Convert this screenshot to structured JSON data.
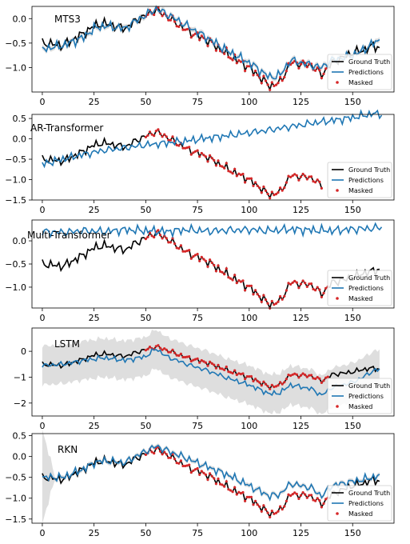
{
  "chart_data": [
    {
      "type": "line",
      "title": "MTS3",
      "xlim": [
        -5,
        170
      ],
      "ylim": [
        -1.5,
        0.25
      ],
      "xticks": [
        0,
        25,
        50,
        75,
        100,
        125,
        150
      ],
      "yticks": [
        -1.0,
        -0.5,
        0.0
      ],
      "ytick_labels": [
        "−1.0",
        "−0.5",
        "0.0"
      ],
      "pred_band": 0.05,
      "gt_knots": [
        [
          0,
          -0.5
        ],
        [
          10,
          -0.55
        ],
        [
          20,
          -0.3
        ],
        [
          25,
          -0.15
        ],
        [
          30,
          -0.1
        ],
        [
          40,
          -0.2
        ],
        [
          45,
          -0.05
        ],
        [
          55,
          0.18
        ],
        [
          60,
          0.05
        ],
        [
          70,
          -0.25
        ],
        [
          80,
          -0.45
        ],
        [
          90,
          -0.75
        ],
        [
          100,
          -1.0
        ],
        [
          110,
          -1.38
        ],
        [
          115,
          -1.3
        ],
        [
          120,
          -0.9
        ],
        [
          130,
          -0.95
        ],
        [
          135,
          -1.15
        ],
        [
          140,
          -0.9
        ],
        [
          150,
          -0.7
        ],
        [
          155,
          -0.65
        ],
        [
          160,
          -0.55
        ],
        [
          163,
          -0.6
        ]
      ],
      "pred_knots": [
        [
          0,
          -0.62
        ],
        [
          10,
          -0.55
        ],
        [
          20,
          -0.38
        ],
        [
          25,
          -0.2
        ],
        [
          30,
          -0.15
        ],
        [
          40,
          -0.2
        ],
        [
          45,
          -0.05
        ],
        [
          55,
          0.2
        ],
        [
          60,
          0.1
        ],
        [
          70,
          -0.15
        ],
        [
          80,
          -0.4
        ],
        [
          90,
          -0.68
        ],
        [
          100,
          -0.9
        ],
        [
          110,
          -1.2
        ],
        [
          115,
          -1.15
        ],
        [
          120,
          -0.85
        ],
        [
          130,
          -0.95
        ],
        [
          135,
          -1.0
        ],
        [
          140,
          -0.85
        ],
        [
          150,
          -0.75
        ],
        [
          155,
          -0.65
        ],
        [
          160,
          -0.5
        ],
        [
          163,
          -0.45
        ]
      ],
      "masked_range": [
        50,
        138
      ],
      "legend": [
        "Ground Truth",
        "Predictions",
        "Masked"
      ],
      "legend_position": "bottom-right"
    },
    {
      "type": "line",
      "title": "AR-Transformer",
      "xlim": [
        -5,
        170
      ],
      "ylim": [
        -1.5,
        0.6
      ],
      "xticks": [
        0,
        25,
        50,
        75,
        100,
        125,
        150
      ],
      "yticks": [
        -1.5,
        -1.0,
        -0.5,
        0.0,
        0.5
      ],
      "ytick_labels": [
        "−1.5",
        "−1.0",
        "−0.5",
        "0.0",
        "0.5"
      ],
      "pred_band": 0,
      "gt_knots": [
        [
          0,
          -0.5
        ],
        [
          10,
          -0.55
        ],
        [
          20,
          -0.3
        ],
        [
          25,
          -0.15
        ],
        [
          30,
          -0.1
        ],
        [
          40,
          -0.2
        ],
        [
          45,
          -0.05
        ],
        [
          55,
          0.18
        ],
        [
          60,
          0.05
        ],
        [
          70,
          -0.25
        ],
        [
          80,
          -0.45
        ],
        [
          90,
          -0.75
        ],
        [
          100,
          -1.0
        ],
        [
          110,
          -1.38
        ],
        [
          115,
          -1.3
        ],
        [
          120,
          -0.9
        ],
        [
          130,
          -0.95
        ],
        [
          135,
          -1.15
        ]
      ],
      "pred_knots": [
        [
          0,
          -0.62
        ],
        [
          10,
          -0.5
        ],
        [
          20,
          -0.38
        ],
        [
          30,
          -0.28
        ],
        [
          40,
          -0.22
        ],
        [
          50,
          -0.15
        ],
        [
          60,
          -0.1
        ],
        [
          70,
          -0.05
        ],
        [
          80,
          0.02
        ],
        [
          90,
          0.08
        ],
        [
          100,
          0.15
        ],
        [
          110,
          0.22
        ],
        [
          120,
          0.3
        ],
        [
          130,
          0.38
        ],
        [
          140,
          0.45
        ],
        [
          150,
          0.52
        ],
        [
          160,
          0.62
        ],
        [
          164,
          0.6
        ]
      ],
      "masked_range": [
        50,
        138
      ],
      "legend": [
        "Ground Truth",
        "Predictions",
        "Masked"
      ],
      "legend_position": "bottom-right"
    },
    {
      "type": "line",
      "title": "Multi-Transformer",
      "xlim": [
        -5,
        170
      ],
      "ylim": [
        -1.45,
        0.45
      ],
      "xticks": [
        0,
        25,
        50,
        75,
        100,
        125,
        150
      ],
      "yticks": [
        -1.0,
        -0.5,
        0.0
      ],
      "ytick_labels": [
        "−1.0",
        "−0.5",
        "0.0"
      ],
      "pred_band": 0,
      "gt_knots": [
        [
          0,
          -0.5
        ],
        [
          10,
          -0.55
        ],
        [
          20,
          -0.3
        ],
        [
          25,
          -0.15
        ],
        [
          30,
          -0.1
        ],
        [
          40,
          -0.2
        ],
        [
          45,
          -0.05
        ],
        [
          55,
          0.18
        ],
        [
          60,
          0.05
        ],
        [
          70,
          -0.25
        ],
        [
          80,
          -0.45
        ],
        [
          90,
          -0.75
        ],
        [
          100,
          -1.0
        ],
        [
          110,
          -1.38
        ],
        [
          115,
          -1.3
        ],
        [
          120,
          -0.9
        ],
        [
          130,
          -0.95
        ],
        [
          135,
          -1.15
        ],
        [
          140,
          -0.9
        ],
        [
          150,
          -0.8
        ],
        [
          155,
          -0.7
        ],
        [
          160,
          -0.65
        ],
        [
          163,
          -0.62
        ]
      ],
      "pred_knots": [
        [
          0,
          0.2
        ],
        [
          10,
          0.18
        ],
        [
          20,
          0.22
        ],
        [
          30,
          0.2
        ],
        [
          40,
          0.24
        ],
        [
          50,
          0.22
        ],
        [
          60,
          0.2
        ],
        [
          70,
          0.24
        ],
        [
          80,
          0.21
        ],
        [
          90,
          0.23
        ],
        [
          100,
          0.24
        ],
        [
          110,
          0.22
        ],
        [
          120,
          0.25
        ],
        [
          130,
          0.23
        ],
        [
          140,
          0.22
        ],
        [
          150,
          0.25
        ],
        [
          160,
          0.27
        ],
        [
          164,
          0.3
        ]
      ],
      "masked_range": [
        50,
        138
      ],
      "legend": [
        "Ground Truth",
        "Predictions",
        "Masked"
      ],
      "legend_position": "bottom-right"
    },
    {
      "type": "line",
      "title": "LSTM",
      "xlim": [
        -5,
        170
      ],
      "ylim": [
        -2.5,
        0.9
      ],
      "xticks": [
        0,
        25,
        50,
        75,
        100,
        125,
        150
      ],
      "yticks": [
        -2,
        -1,
        0
      ],
      "ytick_labels": [
        "−2",
        "−1",
        "0"
      ],
      "pred_band": 0.75,
      "gt_knots": [
        [
          0,
          -0.5
        ],
        [
          10,
          -0.55
        ],
        [
          20,
          -0.3
        ],
        [
          25,
          -0.15
        ],
        [
          30,
          -0.1
        ],
        [
          40,
          -0.2
        ],
        [
          45,
          -0.05
        ],
        [
          55,
          0.18
        ],
        [
          60,
          0.05
        ],
        [
          70,
          -0.25
        ],
        [
          80,
          -0.45
        ],
        [
          90,
          -0.75
        ],
        [
          100,
          -1.0
        ],
        [
          110,
          -1.38
        ],
        [
          115,
          -1.3
        ],
        [
          120,
          -0.9
        ],
        [
          130,
          -0.95
        ],
        [
          135,
          -1.15
        ],
        [
          140,
          -0.9
        ],
        [
          150,
          -0.8
        ],
        [
          155,
          -0.7
        ],
        [
          160,
          -0.65
        ],
        [
          163,
          -0.7
        ]
      ],
      "pred_knots": [
        [
          0,
          -0.55
        ],
        [
          10,
          -0.5
        ],
        [
          20,
          -0.35
        ],
        [
          30,
          -0.25
        ],
        [
          40,
          -0.35
        ],
        [
          50,
          -0.2
        ],
        [
          55,
          0.1
        ],
        [
          60,
          -0.2
        ],
        [
          70,
          -0.5
        ],
        [
          80,
          -0.75
        ],
        [
          90,
          -1.05
        ],
        [
          100,
          -1.3
        ],
        [
          110,
          -1.65
        ],
        [
          115,
          -1.6
        ],
        [
          120,
          -1.3
        ],
        [
          130,
          -1.45
        ],
        [
          135,
          -1.7
        ],
        [
          140,
          -1.4
        ],
        [
          150,
          -1.2
        ],
        [
          155,
          -1.0
        ],
        [
          160,
          -0.75
        ],
        [
          163,
          -0.7
        ]
      ],
      "masked_range": [
        50,
        138
      ],
      "legend": [
        "Ground Truth",
        "Predictions",
        "Masked"
      ],
      "legend_position": "bottom-right"
    },
    {
      "type": "line",
      "title": "RKN",
      "xlim": [
        -5,
        170
      ],
      "ylim": [
        -1.6,
        0.55
      ],
      "xticks": [
        0,
        25,
        50,
        75,
        100,
        125,
        150
      ],
      "yticks": [
        -1.5,
        -1.0,
        -0.5,
        0.0,
        0.5
      ],
      "ytick_labels": [
        "−1.5",
        "−1.0",
        "−0.5",
        "0.0",
        "0.5"
      ],
      "pred_band": 0.05,
      "gt_knots": [
        [
          0,
          -0.5
        ],
        [
          10,
          -0.55
        ],
        [
          20,
          -0.3
        ],
        [
          25,
          -0.15
        ],
        [
          30,
          -0.1
        ],
        [
          40,
          -0.2
        ],
        [
          45,
          -0.05
        ],
        [
          55,
          0.18
        ],
        [
          60,
          0.05
        ],
        [
          70,
          -0.25
        ],
        [
          80,
          -0.45
        ],
        [
          90,
          -0.75
        ],
        [
          100,
          -1.0
        ],
        [
          110,
          -1.38
        ],
        [
          115,
          -1.3
        ],
        [
          120,
          -0.9
        ],
        [
          130,
          -0.95
        ],
        [
          135,
          -1.15
        ],
        [
          140,
          -0.9
        ],
        [
          150,
          -0.7
        ],
        [
          155,
          -0.65
        ],
        [
          160,
          -0.55
        ],
        [
          163,
          -0.6
        ]
      ],
      "pred_knots": [
        [
          0,
          -0.5
        ],
        [
          10,
          -0.5
        ],
        [
          20,
          -0.3
        ],
        [
          25,
          -0.15
        ],
        [
          30,
          -0.1
        ],
        [
          40,
          -0.15
        ],
        [
          45,
          0.0
        ],
        [
          55,
          0.25
        ],
        [
          60,
          0.15
        ],
        [
          70,
          -0.05
        ],
        [
          80,
          -0.25
        ],
        [
          90,
          -0.45
        ],
        [
          100,
          -0.7
        ],
        [
          110,
          -0.95
        ],
        [
          115,
          -0.9
        ],
        [
          120,
          -0.65
        ],
        [
          130,
          -0.75
        ],
        [
          135,
          -0.95
        ],
        [
          140,
          -0.7
        ],
        [
          150,
          -0.6
        ],
        [
          155,
          -0.55
        ],
        [
          160,
          -0.5
        ],
        [
          163,
          -0.45
        ]
      ],
      "masked_range": [
        50,
        138
      ],
      "legend": [
        "Ground Truth",
        "Predictions",
        "Masked"
      ],
      "legend_position": "bottom-right"
    }
  ],
  "colors": {
    "ground_truth": "#000000",
    "predictions": "#1f77b4",
    "masked": "#d62728",
    "band": "#cccccc"
  }
}
